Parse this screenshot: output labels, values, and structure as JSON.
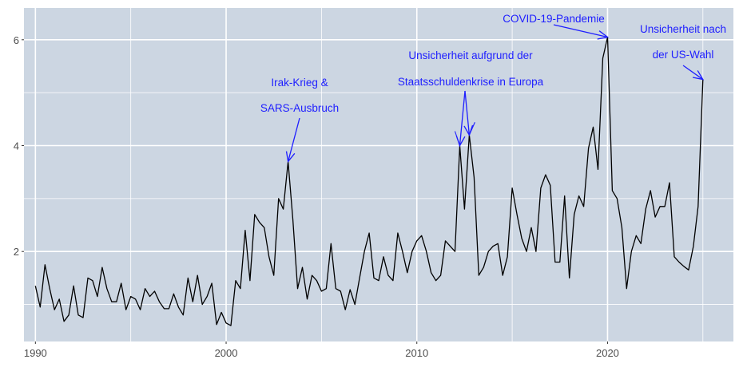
{
  "chart_data": {
    "type": "line",
    "title": "",
    "xlabel": "",
    "ylabel": "",
    "xlim": [
      1989.4,
      2026.6
    ],
    "ylim": [
      0.3,
      6.6
    ],
    "x_ticks": [
      "1990",
      "2000",
      "2010",
      "2020"
    ],
    "y_ticks": [
      "2",
      "4",
      "6"
    ],
    "grid": true,
    "legend": "none",
    "colors": {
      "panel": "#CCD6E2",
      "grid": "#FFFFFF",
      "line": "#000000",
      "annotation": "#1E1EFF",
      "axis_text": "#4D4D4D"
    },
    "series": [
      {
        "x": [
          1990.0,
          1990.25,
          1990.5,
          1990.75,
          1991.0,
          1991.25,
          1991.5,
          1991.75,
          1992.0,
          1992.25,
          1992.5,
          1992.75,
          1993.0,
          1993.25,
          1993.5,
          1993.75,
          1994.0,
          1994.25,
          1994.5,
          1994.75,
          1995.0,
          1995.25,
          1995.5,
          1995.75,
          1996.0,
          1996.25,
          1996.5,
          1996.75,
          1997.0,
          1997.25,
          1997.5,
          1997.75,
          1998.0,
          1998.25,
          1998.5,
          1998.75,
          1999.0,
          1999.25,
          1999.5,
          1999.75,
          2000.0,
          2000.25,
          2000.5,
          2000.75,
          2001.0,
          2001.25,
          2001.5,
          2001.75,
          2002.0,
          2002.25,
          2002.5,
          2002.75,
          2003.0,
          2003.25,
          2003.5,
          2003.75,
          2004.0,
          2004.25,
          2004.5,
          2004.75,
          2005.0,
          2005.25,
          2005.5,
          2005.75,
          2006.0,
          2006.25,
          2006.5,
          2006.75,
          2007.0,
          2007.25,
          2007.5,
          2007.75,
          2008.0,
          2008.25,
          2008.5,
          2008.75,
          2009.0,
          2009.25,
          2009.5,
          2009.75,
          2010.0,
          2010.25,
          2010.5,
          2010.75,
          2011.0,
          2011.25,
          2011.5,
          2011.75,
          2012.0,
          2012.25,
          2012.5,
          2012.75,
          2013.0,
          2013.25,
          2013.5,
          2013.75,
          2014.0,
          2014.25,
          2014.5,
          2014.75,
          2015.0,
          2015.25,
          2015.5,
          2015.75,
          2016.0,
          2016.25,
          2016.5,
          2016.75,
          2017.0,
          2017.25,
          2017.5,
          2017.75,
          2018.0,
          2018.25,
          2018.5,
          2018.75,
          2019.0,
          2019.25,
          2019.5,
          2019.75,
          2020.0,
          2020.25,
          2020.5,
          2020.75,
          2021.0,
          2021.25,
          2021.5,
          2021.75,
          2022.0,
          2022.25,
          2022.5,
          2022.75,
          2023.0,
          2023.25,
          2023.5,
          2023.75,
          2024.0,
          2024.25,
          2024.5,
          2024.75,
          2025.0
        ],
        "y": [
          1.35,
          0.95,
          1.75,
          1.3,
          0.9,
          1.1,
          0.68,
          0.8,
          1.35,
          0.8,
          0.75,
          1.5,
          1.45,
          1.15,
          1.7,
          1.3,
          1.05,
          1.05,
          1.4,
          0.9,
          1.15,
          1.1,
          0.9,
          1.3,
          1.15,
          1.25,
          1.05,
          0.92,
          0.92,
          1.2,
          0.95,
          0.8,
          1.5,
          1.05,
          1.55,
          1.0,
          1.15,
          1.4,
          0.62,
          0.85,
          0.65,
          0.6,
          1.45,
          1.3,
          2.4,
          1.45,
          2.7,
          2.55,
          2.45,
          1.9,
          1.55,
          3.0,
          2.8,
          3.7,
          2.6,
          1.3,
          1.7,
          1.1,
          1.55,
          1.45,
          1.25,
          1.3,
          2.15,
          1.3,
          1.25,
          0.9,
          1.28,
          1.0,
          1.5,
          2.0,
          2.35,
          1.5,
          1.45,
          1.9,
          1.55,
          1.45,
          2.35,
          2.0,
          1.6,
          2.0,
          2.2,
          2.3,
          2.0,
          1.6,
          1.45,
          1.55,
          2.2,
          2.1,
          2.0,
          4.0,
          2.8,
          4.2,
          3.4,
          1.55,
          1.7,
          2.0,
          2.1,
          2.15,
          1.55,
          1.9,
          3.2,
          2.7,
          2.25,
          2.0,
          2.45,
          2.0,
          3.2,
          3.45,
          3.25,
          1.8,
          1.8,
          3.05,
          1.5,
          2.7,
          3.05,
          2.85,
          3.95,
          4.35,
          3.55,
          5.65,
          6.05,
          3.15,
          3.0,
          2.45,
          1.3,
          2.0,
          2.3,
          2.15,
          2.8,
          3.15,
          2.65,
          2.85,
          2.85,
          3.3,
          1.9,
          1.8,
          1.72,
          1.65,
          2.1,
          2.85,
          5.25
        ]
      }
    ],
    "annotations": [
      {
        "lines": [
          "Irak-Krieg &",
          "SARS-Ausbruch"
        ],
        "x": 2003.25,
        "y": 3.7
      },
      {
        "lines": [
          "Unsicherheit aufgrund der",
          "Staatsschuldenkrise in Europa"
        ],
        "x": 2012.5,
        "y": 4.1
      },
      {
        "lines": [
          "COVID-19-Pandemie"
        ],
        "x": 2020.0,
        "y": 6.05
      },
      {
        "lines": [
          "Unsicherheit nach",
          "der US-Wahl"
        ],
        "x": 2025.0,
        "y": 5.25
      }
    ]
  }
}
